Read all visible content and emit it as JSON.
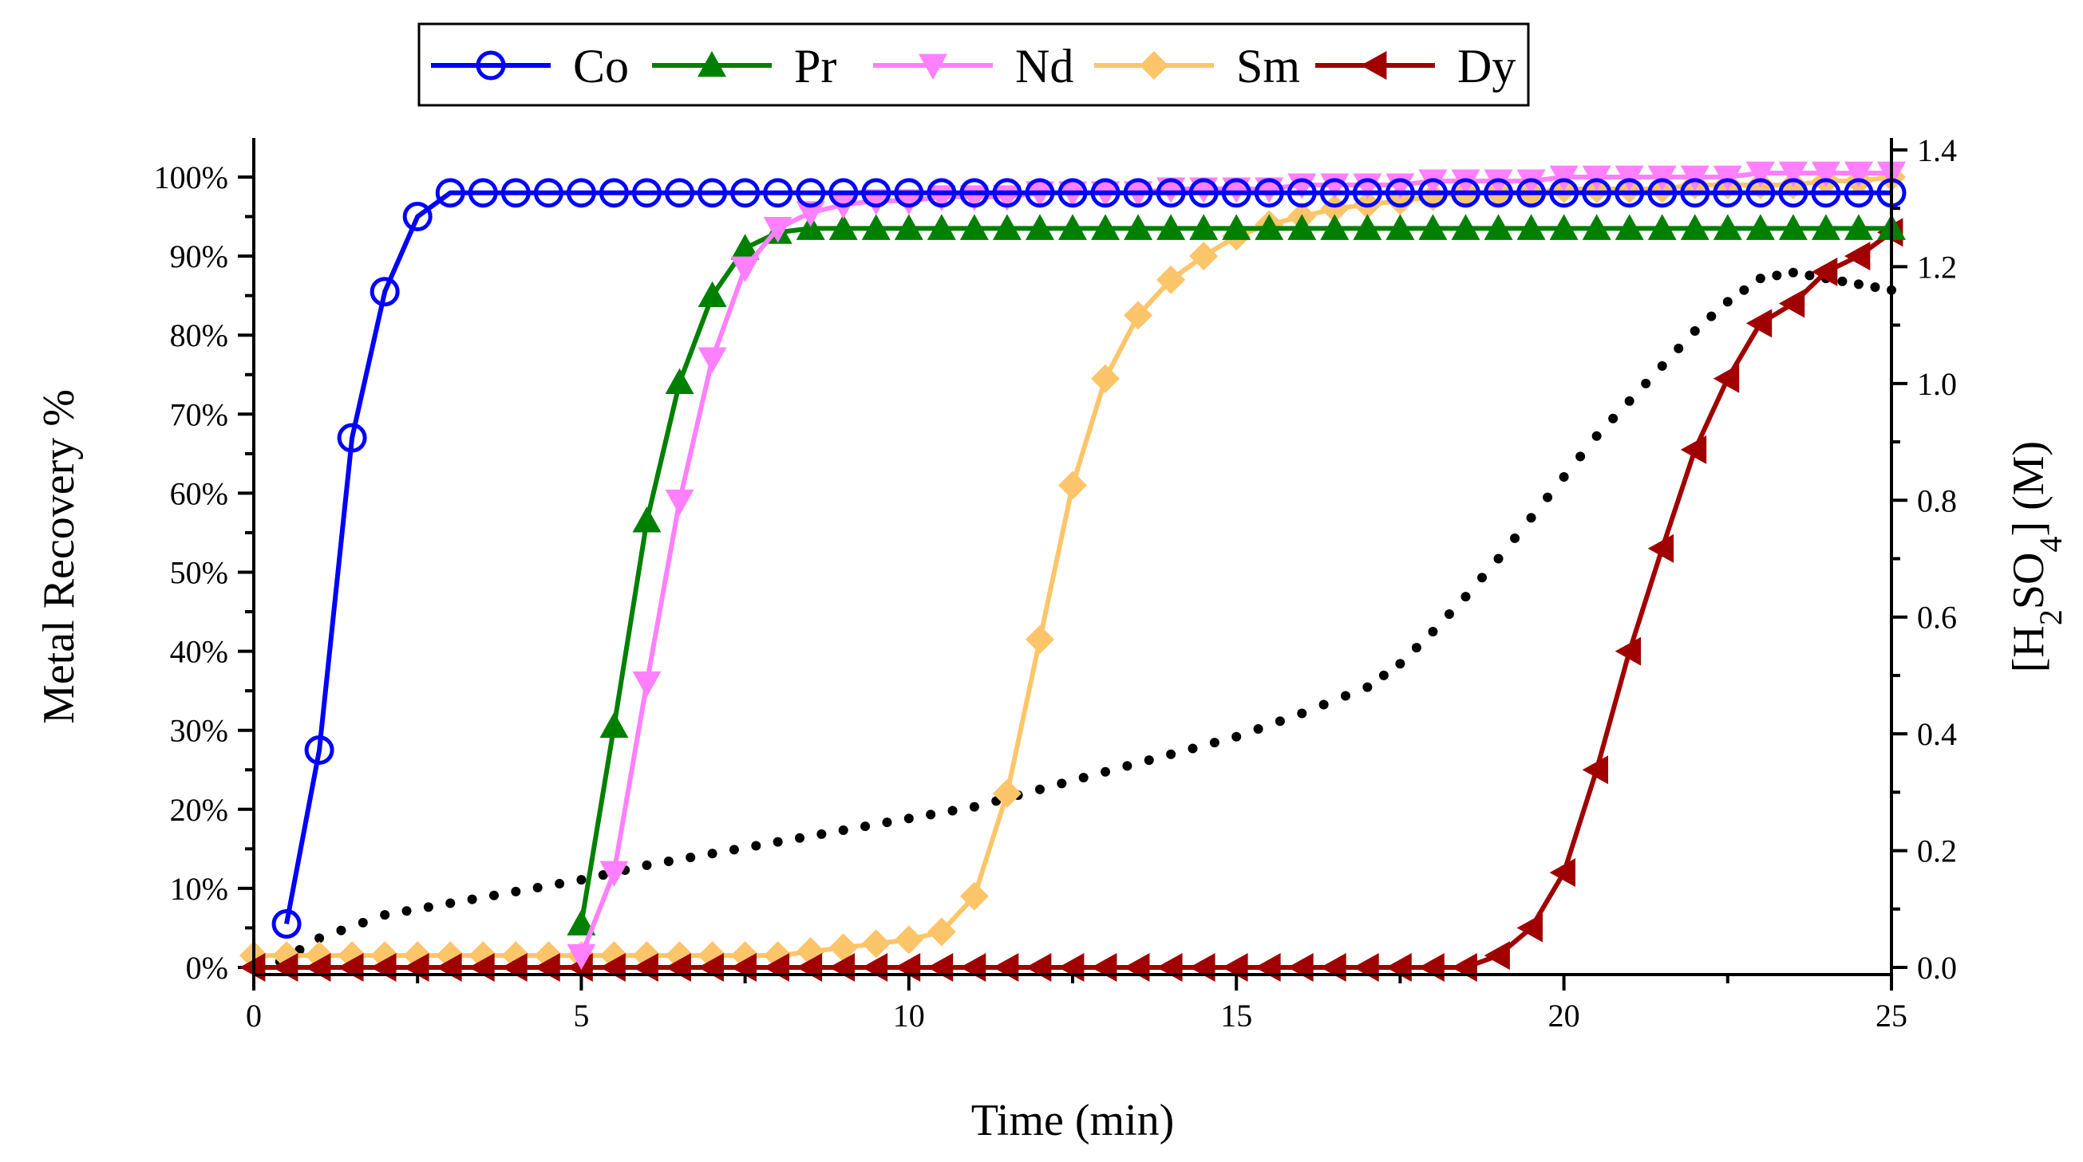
{
  "chart_data": {
    "type": "line",
    "title": "",
    "xlabel": "Time (min)",
    "ylabel": "Metal Recovery %",
    "y2label": "[H2SO4] (M)",
    "y2label_parts": {
      "open": "[H",
      "sub1": "2",
      "mid": "SO",
      "sub2": "4",
      "close": "] (M)"
    },
    "xlim": [
      0,
      25
    ],
    "ylim": [
      0,
      105
    ],
    "y2lim": [
      0,
      1.4
    ],
    "xticks": [
      0,
      5,
      10,
      15,
      20,
      25
    ],
    "xtick_labels": [
      "0",
      "5",
      "10",
      "15",
      "20",
      "25"
    ],
    "yticks": [
      0,
      10,
      20,
      30,
      40,
      50,
      60,
      70,
      80,
      90,
      100
    ],
    "ytick_labels": [
      "0%",
      "10%",
      "20%",
      "30%",
      "40%",
      "50%",
      "60%",
      "70%",
      "80%",
      "90%",
      "100%"
    ],
    "y2ticks": [
      0.0,
      0.2,
      0.4,
      0.6,
      0.8,
      1.0,
      1.2,
      1.4
    ],
    "y2tick_labels": [
      "0.0",
      "0.2",
      "0.4",
      "0.6",
      "0.8",
      "1.0",
      "1.2",
      "1.4"
    ],
    "legend_position": "top-center",
    "series": [
      {
        "name": "Co",
        "color": "#0000ff",
        "marker": "circle-open",
        "axis": "left",
        "x": [
          0.5,
          1.0,
          1.5,
          2.0,
          2.5,
          3.0,
          3.5,
          4.0,
          4.5,
          5.0,
          5.5,
          6.0,
          6.5,
          7.0,
          7.5,
          8.0,
          8.5,
          9.0,
          9.5,
          10.0,
          10.5,
          11.0,
          11.5,
          12.0,
          12.5,
          13.0,
          13.5,
          14.0,
          14.5,
          15.0,
          15.5,
          16.0,
          16.5,
          17.0,
          17.5,
          18.0,
          18.5,
          19.0,
          19.5,
          20.0,
          20.5,
          21.0,
          21.5,
          22.0,
          22.5,
          23.0,
          23.5,
          24.0,
          24.5,
          25.0
        ],
        "y": [
          5.5,
          27.5,
          67,
          85.5,
          95,
          98,
          98,
          98,
          98,
          98,
          98,
          98,
          98,
          98,
          98,
          98,
          98,
          98,
          98,
          98,
          98,
          98,
          98,
          98,
          98,
          98,
          98,
          98,
          98,
          98,
          98,
          98,
          98,
          98,
          98,
          98,
          98,
          98,
          98,
          98,
          98,
          98,
          98,
          98,
          98,
          98,
          98,
          98,
          98,
          98
        ]
      },
      {
        "name": "Pr",
        "color": "#008000",
        "marker": "triangle-up",
        "axis": "left",
        "x": [
          5.0,
          5.5,
          6.0,
          6.5,
          7.0,
          7.5,
          8.0,
          8.5,
          9.0,
          9.5,
          10.0,
          10.5,
          11.0,
          11.5,
          12.0,
          12.5,
          13.0,
          13.5,
          14.0,
          14.5,
          15.0,
          15.5,
          16.0,
          16.5,
          17.0,
          17.5,
          18.0,
          18.5,
          19.0,
          19.5,
          20.0,
          20.5,
          21.0,
          21.5,
          22.0,
          22.5,
          23.0,
          23.5,
          24.0,
          24.5,
          25.0
        ],
        "y": [
          5.5,
          30.5,
          56.5,
          74,
          85,
          91,
          93,
          93.5,
          93.5,
          93.5,
          93.5,
          93.5,
          93.5,
          93.5,
          93.5,
          93.5,
          93.5,
          93.5,
          93.5,
          93.5,
          93.5,
          93.5,
          93.5,
          93.5,
          93.5,
          93.5,
          93.5,
          93.5,
          93.5,
          93.5,
          93.5,
          93.5,
          93.5,
          93.5,
          93.5,
          93.5,
          93.5,
          93.5,
          93.5,
          93.5,
          93.5
        ]
      },
      {
        "name": "Nd",
        "color": "#ff80ff",
        "marker": "triangle-down",
        "axis": "left",
        "x": [
          5.0,
          5.5,
          6.0,
          6.5,
          7.0,
          7.5,
          8.0,
          8.5,
          9.0,
          9.5,
          10.0,
          10.5,
          11.0,
          11.5,
          12.0,
          12.5,
          13.0,
          13.5,
          14.0,
          14.5,
          15.0,
          15.5,
          16.0,
          16.5,
          17.0,
          17.5,
          18.0,
          18.5,
          19.0,
          19.5,
          20.0,
          20.5,
          21.0,
          21.5,
          22.0,
          22.5,
          23.0,
          23.5,
          24.0,
          24.5,
          25.0
        ],
        "y": [
          1.5,
          12,
          36,
          59,
          77,
          88.5,
          93.5,
          95.5,
          96.5,
          97,
          97,
          97.5,
          97.5,
          97.5,
          98,
          98,
          98,
          98,
          98.5,
          98.5,
          98.5,
          98.5,
          99,
          99,
          99,
          99,
          99.5,
          99.5,
          99.5,
          99.5,
          100,
          100,
          100,
          100,
          100,
          100,
          100.5,
          100.5,
          100.5,
          100.5,
          100.5
        ]
      },
      {
        "name": "Sm",
        "color": "#fdc56a",
        "marker": "diamond",
        "axis": "left",
        "x": [
          0.0,
          0.5,
          1.0,
          1.5,
          2.0,
          2.5,
          3.0,
          3.5,
          4.0,
          4.5,
          5.0,
          5.5,
          6.0,
          6.5,
          7.0,
          7.5,
          8.0,
          8.5,
          9.0,
          9.5,
          10.0,
          10.5,
          11.0,
          11.5,
          12.0,
          12.5,
          13.0,
          13.5,
          14.0,
          14.5,
          15.0,
          15.5,
          16.0,
          16.5,
          17.0,
          17.5,
          18.0,
          18.5,
          19.0,
          19.5,
          20.0,
          20.5,
          21.0,
          21.5,
          22.0,
          22.5,
          23.0,
          23.5,
          24.0,
          24.5,
          25.0
        ],
        "y": [
          1.5,
          1.5,
          1.5,
          1.5,
          1.5,
          1.5,
          1.5,
          1.5,
          1.5,
          1.5,
          1.5,
          1.5,
          1.5,
          1.5,
          1.5,
          1.5,
          1.5,
          2,
          2.5,
          3,
          3.5,
          4.5,
          9,
          22,
          41.5,
          61,
          74.5,
          82.5,
          87,
          90,
          92.5,
          94,
          95,
          96,
          96.5,
          97,
          97.5,
          98,
          98,
          98,
          98.5,
          98.5,
          98.5,
          98.5,
          99,
          99,
          99,
          99,
          99.5,
          99.5,
          100
        ]
      },
      {
        "name": "Dy",
        "color": "#a00000",
        "marker": "triangle-left",
        "axis": "left",
        "x": [
          0.0,
          0.5,
          1.0,
          1.5,
          2.0,
          2.5,
          3.0,
          3.5,
          4.0,
          4.5,
          5.0,
          5.5,
          6.0,
          6.5,
          7.0,
          7.5,
          8.0,
          8.5,
          9.0,
          9.5,
          10.0,
          10.5,
          11.0,
          11.5,
          12.0,
          12.5,
          13.0,
          13.5,
          14.0,
          14.5,
          15.0,
          15.5,
          16.0,
          16.5,
          17.0,
          17.5,
          18.0,
          18.5,
          19.0,
          19.5,
          20.0,
          20.5,
          21.0,
          21.5,
          22.0,
          22.5,
          23.0,
          23.5,
          24.0,
          24.5,
          25.0
        ],
        "y": [
          0,
          0,
          0,
          0,
          0,
          0,
          0,
          0,
          0,
          0,
          0,
          0,
          0,
          0,
          0,
          0,
          0,
          0,
          0,
          0,
          0,
          0,
          0,
          0,
          0,
          0,
          0,
          0,
          0,
          0,
          0,
          0,
          0,
          0,
          0,
          0,
          0,
          0,
          1.5,
          5,
          12,
          25,
          40,
          53,
          65.5,
          74.5,
          81.5,
          84,
          88,
          90,
          93
        ]
      },
      {
        "name": "H2SO4",
        "color": "#000000",
        "marker": "dot",
        "axis": "right",
        "legend": false,
        "x": [
          0.4,
          1,
          2,
          3,
          4,
          5,
          6,
          7,
          8,
          9,
          10,
          11,
          12,
          13,
          14,
          15,
          16,
          17,
          17.5,
          18,
          18.5,
          19,
          19.5,
          20,
          20.5,
          21,
          21.5,
          22,
          22.5,
          23,
          23.5,
          24,
          24.5,
          25
        ],
        "y": [
          0.01,
          0.05,
          0.09,
          0.11,
          0.13,
          0.15,
          0.175,
          0.195,
          0.215,
          0.235,
          0.255,
          0.275,
          0.305,
          0.335,
          0.365,
          0.395,
          0.435,
          0.48,
          0.52,
          0.575,
          0.635,
          0.7,
          0.77,
          0.84,
          0.91,
          0.97,
          1.03,
          1.09,
          1.14,
          1.18,
          1.19,
          1.18,
          1.17,
          1.16
        ]
      }
    ]
  }
}
